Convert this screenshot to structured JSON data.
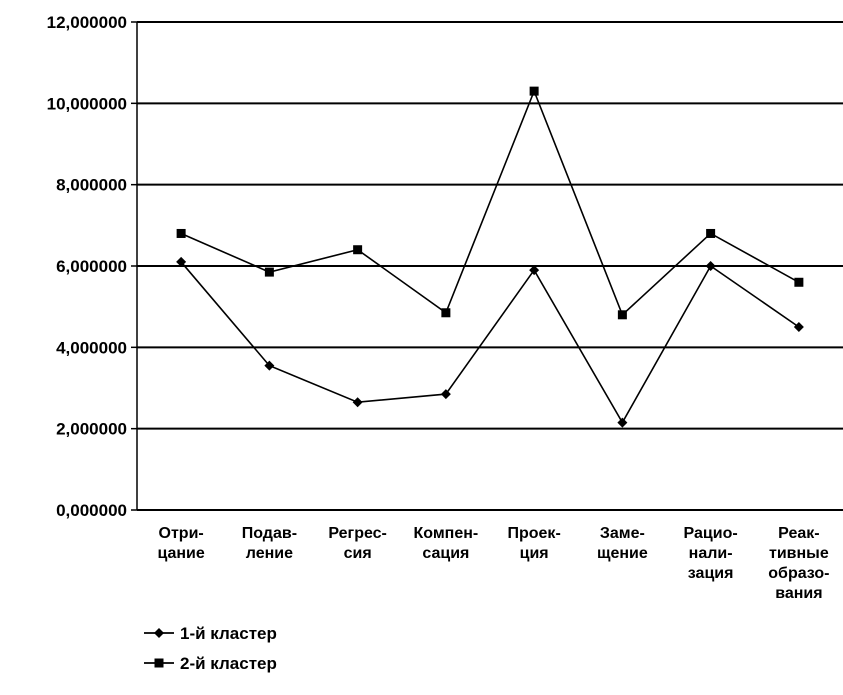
{
  "chart_data": {
    "type": "line",
    "title": "",
    "xlabel": "",
    "ylabel": "",
    "categories": [
      [
        "Отри-",
        "цание"
      ],
      [
        "Подав-",
        "ление"
      ],
      [
        "Регрес-",
        "сия"
      ],
      [
        "Компен-",
        "сация"
      ],
      [
        "Проек-",
        "ция"
      ],
      [
        "Заме-",
        "щение"
      ],
      [
        "Рацио-",
        "нали-",
        "зация"
      ],
      [
        "Реак-",
        "тивные",
        "образо-",
        "вания"
      ]
    ],
    "y_tick_labels": [
      "0,000000",
      "2,000000",
      "4,000000",
      "6,000000",
      "8,000000",
      "10,000000",
      "12,000000"
    ],
    "ylim": [
      0,
      12
    ],
    "y_step": 2,
    "grid": true,
    "legend_position": "bottom-left",
    "series": [
      {
        "name": "1-й кластер",
        "marker": "diamond",
        "color": "#000000",
        "values": [
          6.1,
          3.55,
          2.65,
          2.85,
          5.9,
          2.15,
          6.0,
          4.5
        ]
      },
      {
        "name": "2-й кластер",
        "marker": "square",
        "color": "#000000",
        "values": [
          6.8,
          5.85,
          6.4,
          4.85,
          10.3,
          4.8,
          6.8,
          5.6
        ]
      }
    ]
  }
}
